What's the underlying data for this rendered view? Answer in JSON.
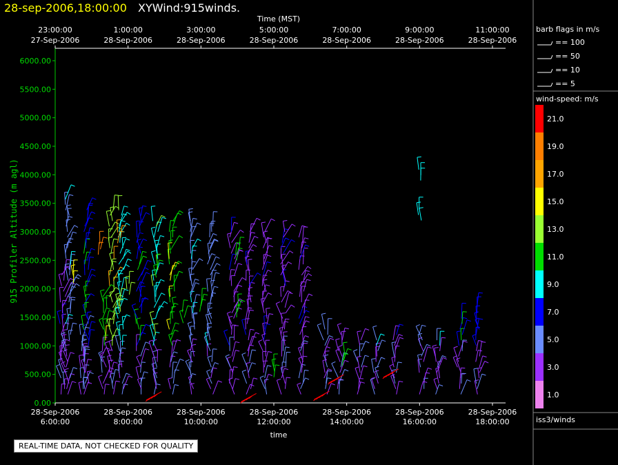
{
  "header": {
    "date_time": "28-sep-2006,18:00:00",
    "product": "XYWind:915winds."
  },
  "notice": "REAL-TIME DATA, NOT CHECKED FOR QUALITY",
  "legend": {
    "barb_title": "barb flags in m/s",
    "barbs": [
      "== 100",
      "== 50",
      "== 10",
      "== 5"
    ],
    "speed_title": "wind-speed: m/s",
    "speed_labels": [
      "21.0",
      "19.0",
      "17.0",
      "15.0",
      "13.0",
      "11.0",
      "9.0",
      "7.0",
      "5.0",
      "3.0",
      "1.0"
    ],
    "colors": [
      "#ff0000",
      "#ff7f00",
      "#ffa500",
      "#ffff00",
      "#9aff32",
      "#00dd00",
      "#00ffff",
      "#0000ff",
      "#6a8cff",
      "#9b30ff",
      "#ee82ee"
    ],
    "source": "iss3/winds"
  },
  "chart_data": {
    "type": "scatter",
    "ylabel": "915 Profiler Altitude (m agl)",
    "xlabel_bottom": "time",
    "xlabel_top": "Time (MST)",
    "ylim": [
      0,
      6200
    ],
    "yticks": [
      "0.00",
      "500.00",
      "1000.00",
      "1500.00",
      "2000.00",
      "2500.00",
      "3000.00",
      "3500.00",
      "4000.00",
      "4500.00",
      "5000.00",
      "5500.00",
      "6000.00"
    ],
    "bottom_ticks": [
      {
        "date": "28-Sep-2006",
        "time": "6:00:00"
      },
      {
        "date": "28-Sep-2006",
        "time": "8:00:00"
      },
      {
        "date": "28-Sep-2006",
        "time": "10:00:00"
      },
      {
        "date": "28-Sep-2006",
        "time": "12:00:00"
      },
      {
        "date": "28-Sep-2006",
        "time": "14:00:00"
      },
      {
        "date": "28-Sep-2006",
        "time": "16:00:00"
      },
      {
        "date": "28-Sep-2006",
        "time": "18:00:00"
      }
    ],
    "top_ticks": [
      {
        "time": "23:00:00",
        "date": "27-Sep-2006"
      },
      {
        "time": "1:00:00",
        "date": "28-Sep-2006"
      },
      {
        "time": "3:00:00",
        "date": "28-Sep-2006"
      },
      {
        "time": "5:00:00",
        "date": "28-Sep-2006"
      },
      {
        "time": "7:00:00",
        "date": "28-Sep-2006"
      },
      {
        "time": "9:00:00",
        "date": "28-Sep-2006"
      },
      {
        "time": "11:00:00",
        "date": "28-Sep-2006"
      }
    ],
    "profiles": [
      {
        "t": 6.2,
        "top": 2400,
        "c": 9
      },
      {
        "t": 6.35,
        "top": 3600,
        "c": 8
      },
      {
        "t": 6.75,
        "top": 1300,
        "c": 8
      },
      {
        "t": 6.85,
        "top": 3400,
        "c": 7
      },
      {
        "t": 7.35,
        "top": 1900,
        "c": 5
      },
      {
        "t": 7.55,
        "top": 3400,
        "c": 4
      },
      {
        "t": 7.8,
        "top": 3400,
        "c": 6
      },
      {
        "t": 8.3,
        "top": 3300,
        "c": 7
      },
      {
        "t": 8.75,
        "top": 3250,
        "c": 6
      },
      {
        "t": 9.2,
        "top": 3250,
        "c": 5
      },
      {
        "t": 9.75,
        "top": 3200,
        "c": 8
      },
      {
        "t": 10.25,
        "top": 3100,
        "c": 8
      },
      {
        "t": 10.85,
        "top": 3050,
        "c": 9
      },
      {
        "t": 11.3,
        "top": 3050,
        "c": 9
      },
      {
        "t": 11.75,
        "top": 3000,
        "c": 9
      },
      {
        "t": 12.25,
        "top": 3000,
        "c": 9
      },
      {
        "t": 12.75,
        "top": 2950,
        "c": 9
      },
      {
        "t": 13.4,
        "top": 1300,
        "c": 8
      },
      {
        "t": 13.8,
        "top": 1200,
        "c": 9
      },
      {
        "t": 14.35,
        "top": 1150,
        "c": 9
      },
      {
        "t": 14.8,
        "top": 1100,
        "c": 8
      },
      {
        "t": 15.3,
        "top": 1250,
        "c": 9
      },
      {
        "t": 16.05,
        "top": 1200,
        "c": 8
      },
      {
        "t": 16.5,
        "top": 1100,
        "c": 8
      },
      {
        "t": 17.1,
        "top": 1500,
        "c": 7
      },
      {
        "t": 17.6,
        "top": 1700,
        "c": 7
      }
    ],
    "highlights": [
      {
        "t": 6.55,
        "alt": 2100,
        "c": 3
      },
      {
        "t": 7.2,
        "alt": 2600,
        "c": 1
      },
      {
        "t": 7.75,
        "alt": 2800,
        "c": 2
      },
      {
        "t": 7.75,
        "alt": 1600,
        "c": 4
      },
      {
        "t": 8.0,
        "alt": 1900,
        "c": 4
      },
      {
        "t": 8.8,
        "alt": 2200,
        "c": 5
      },
      {
        "t": 9.5,
        "alt": 1400,
        "c": 5
      },
      {
        "t": 10.0,
        "alt": 1600,
        "c": 5
      },
      {
        "t": 11.0,
        "alt": 1500,
        "c": 5
      },
      {
        "t": 11.0,
        "alt": 2500,
        "c": 5
      },
      {
        "t": 12.0,
        "alt": 450,
        "c": 5
      },
      {
        "t": 13.9,
        "alt": 650,
        "c": 5
      },
      {
        "t": 16.0,
        "alt": 3200,
        "c": 6
      },
      {
        "t": 16.0,
        "alt": 3900,
        "c": 6
      }
    ],
    "red_barbs": [
      {
        "t": 8.5,
        "alt": 50
      },
      {
        "t": 11.1,
        "alt": 20
      },
      {
        "t": 13.1,
        "alt": 60
      },
      {
        "t": 13.5,
        "alt": 350
      },
      {
        "t": 15.0,
        "alt": 450
      }
    ]
  }
}
